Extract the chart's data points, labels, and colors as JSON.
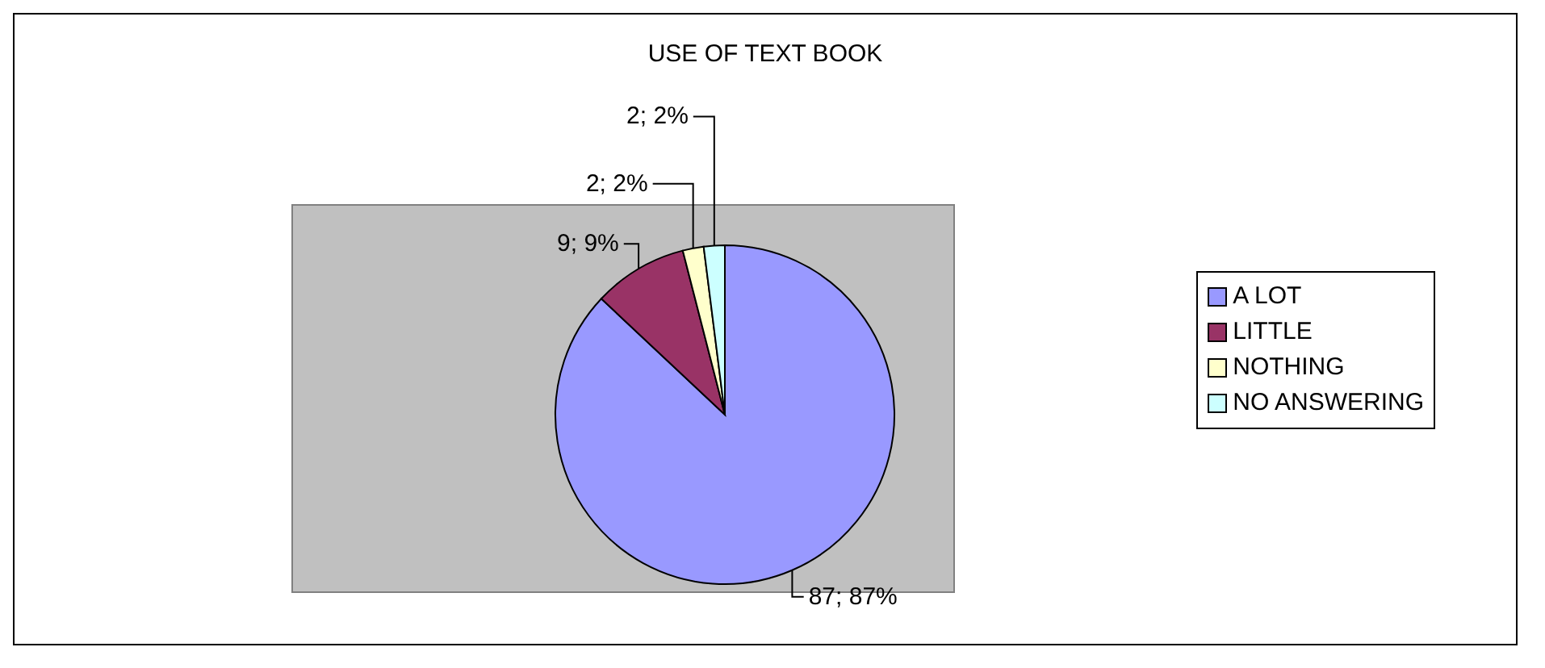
{
  "chart_data": {
    "type": "pie",
    "title": "USE OF TEXT BOOK",
    "categories": [
      "A LOT",
      "LITTLE",
      "NOTHING",
      "NO ANSWERING"
    ],
    "values": [
      87,
      9,
      2,
      2
    ],
    "colors": [
      "#9999ff",
      "#993366",
      "#ffffcc",
      "#ccffff"
    ],
    "value_labels": [
      "87; 87%",
      "9; 9%",
      "2; 2%",
      "2; 2%"
    ],
    "legend": "right"
  }
}
